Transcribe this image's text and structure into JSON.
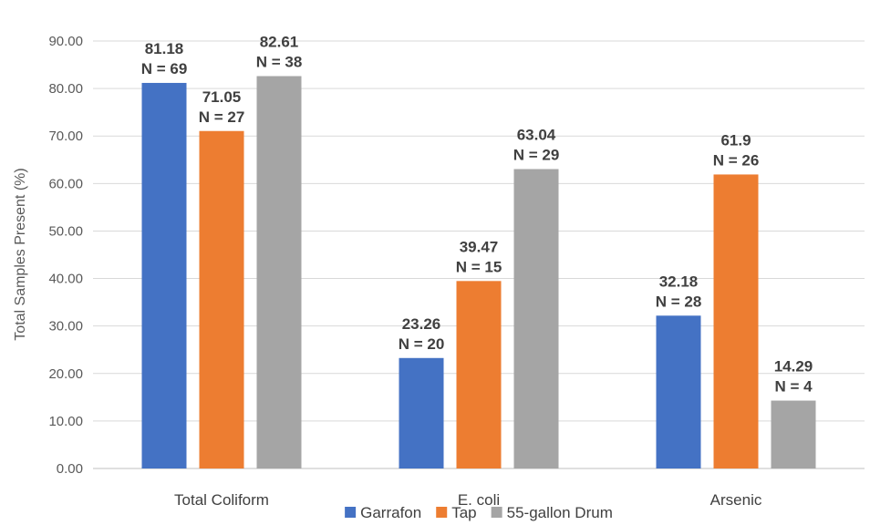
{
  "chart_data": {
    "type": "bar",
    "categories": [
      "Total Coliform",
      "E. coli",
      "Arsenic"
    ],
    "series": [
      {
        "name": "Garrafon",
        "color": "#4472c4",
        "values": [
          81.18,
          23.26,
          32.18
        ],
        "n": [
          "N = 69",
          "N = 20",
          "N = 28"
        ]
      },
      {
        "name": "Tap",
        "color": "#ed7d31",
        "values": [
          71.05,
          39.47,
          61.9
        ],
        "n": [
          "N = 27",
          "N = 15",
          "N = 26"
        ]
      },
      {
        "name": "55-gallon Drum",
        "color": "#a5a5a5",
        "values": [
          82.61,
          63.04,
          14.29
        ],
        "n": [
          "N = 38",
          "N = 29",
          "N = 4"
        ]
      }
    ],
    "value_labels": [
      [
        "81.18",
        "23.26",
        "32.18"
      ],
      [
        "71.05",
        "39.47",
        "61.9"
      ],
      [
        "82.61",
        "63.04",
        "14.29"
      ]
    ],
    "ylabel": "Total Samples Present (%)",
    "ylim": [
      0,
      90
    ],
    "yticks": [
      "0.00",
      "10.00",
      "20.00",
      "30.00",
      "40.00",
      "50.00",
      "60.00",
      "70.00",
      "80.00",
      "90.00"
    ],
    "grid": true,
    "legend_position": "bottom"
  }
}
